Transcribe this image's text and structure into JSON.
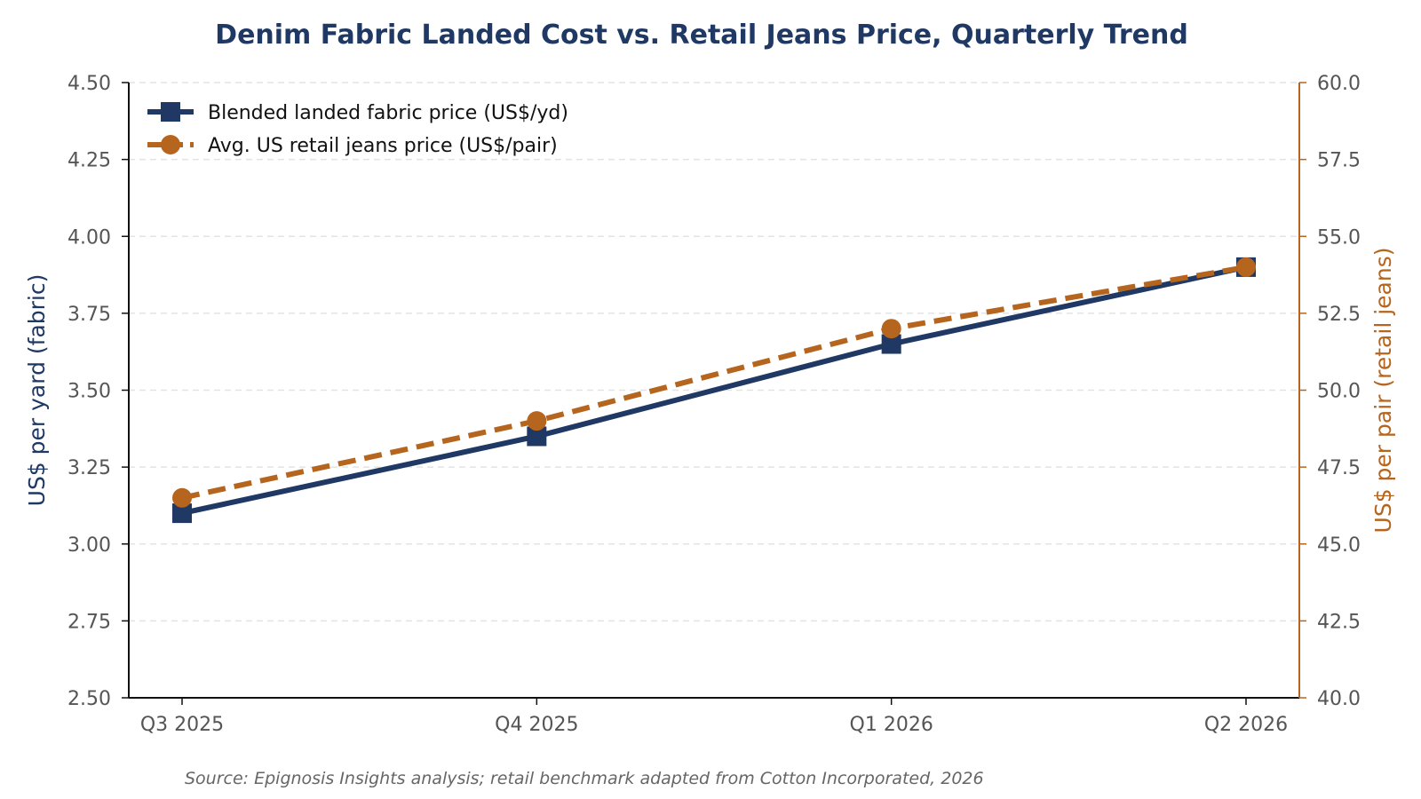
{
  "chart_data": {
    "type": "line",
    "title": "Denim Fabric Landed Cost vs. Retail Jeans Price, Quarterly Trend",
    "source": "Source: Epignosis Insights analysis; retail benchmark adapted from Cotton Incorporated, 2026",
    "categories": [
      "Q3 2025",
      "Q4 2025",
      "Q1 2026",
      "Q2 2026"
    ],
    "y_left": {
      "label": "US$ per yard (fabric)",
      "ylim": [
        2.5,
        4.5
      ],
      "ticks": [
        "2.50",
        "2.75",
        "3.00",
        "3.25",
        "3.50",
        "3.75",
        "4.00",
        "4.25",
        "4.50"
      ],
      "color": "#1f3864"
    },
    "y_right": {
      "label": "US$ per pair (retail jeans)",
      "ylim": [
        40,
        60
      ],
      "ticks": [
        "40.0",
        "42.5",
        "45.0",
        "47.5",
        "50.0",
        "52.5",
        "55.0",
        "57.5",
        "60.0"
      ],
      "color": "#b5651d"
    },
    "series": [
      {
        "name": "Blended landed fabric price (US$/yd)",
        "axis": "left",
        "values": [
          3.1,
          3.35,
          3.65,
          3.9
        ],
        "color": "#1f3864",
        "line_style": "solid",
        "marker": "square"
      },
      {
        "name": "Avg. US retail jeans price (US$/pair)",
        "axis": "right",
        "values": [
          46.5,
          49.0,
          52.0,
          54.0
        ],
        "color": "#b5651d",
        "line_style": "dashed",
        "marker": "circle"
      }
    ],
    "grid": "horizontal dashed",
    "legend_position": "top-left"
  }
}
